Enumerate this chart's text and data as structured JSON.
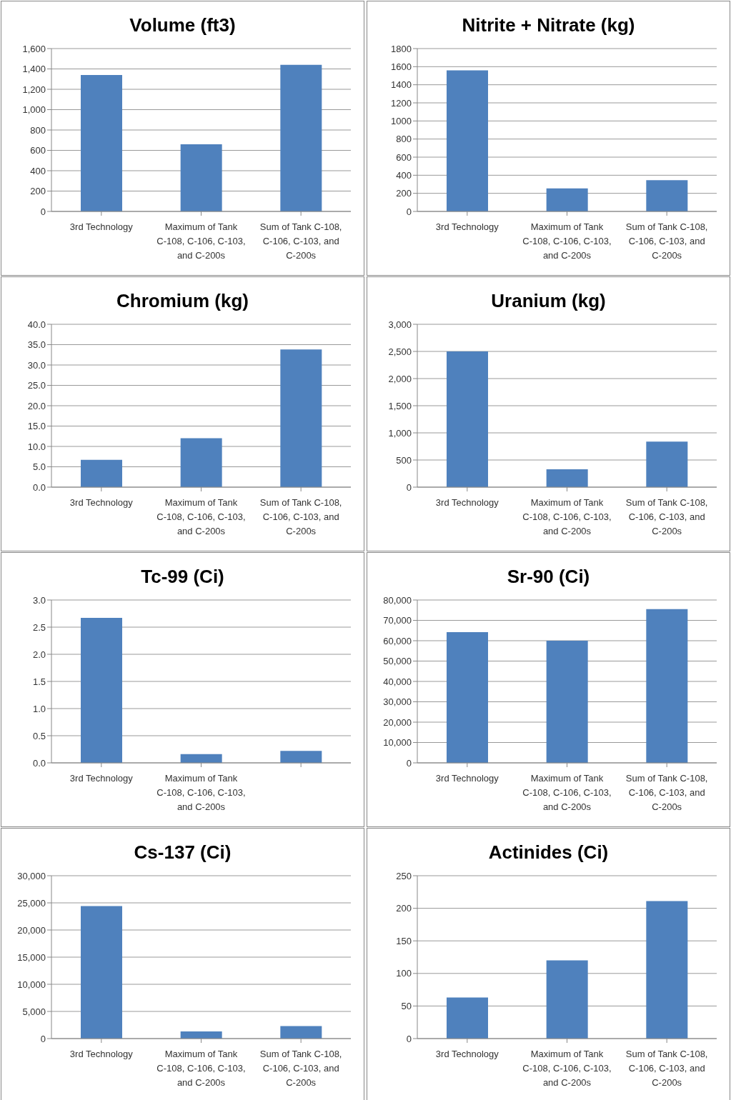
{
  "chart_data": [
    {
      "type": "bar",
      "title": "Volume (ft3)",
      "categories": [
        "3rd Technology",
        "Maximum of Tank C-108, C-106, C-103, and C-200s",
        "Sum of Tank C-108, C-106, C-103, and C-200s"
      ],
      "values": [
        1340,
        660,
        1440
      ],
      "color": "#4f81bd",
      "ylim": [
        0,
        1600
      ],
      "yticks": [
        0,
        200,
        400,
        600,
        800,
        {
          "value": 1000,
          "label": "1,000"
        },
        {
          "value": 1200,
          "label": "1,200"
        },
        {
          "value": 1400,
          "label": "1,400"
        },
        {
          "value": 1600,
          "label": "1,600"
        }
      ],
      "grid": "y"
    },
    {
      "type": "bar",
      "title": "Nitrite + Nitrate (kg)",
      "categories": [
        "3rd Technology",
        "Maximum of Tank C-108, C-106, C-103, and C-200s",
        "Sum of Tank C-108, C-106, C-103, and C-200s"
      ],
      "values": [
        1560,
        255,
        345
      ],
      "color": "#4f81bd",
      "ylim": [
        0,
        1800
      ],
      "yticks": [
        0,
        200,
        400,
        600,
        800,
        1000,
        1200,
        1400,
        1600,
        1800
      ],
      "grid": "y"
    },
    {
      "type": "bar",
      "title": "Chromium (kg)",
      "categories": [
        "3rd Technology",
        "Maximum of Tank C-108, C-106, C-103, and C-200s",
        "Sum of Tank C-108, C-106, C-103, and C-200s"
      ],
      "values": [
        6.7,
        12.0,
        33.8
      ],
      "color": "#4f81bd",
      "ylim": [
        0,
        40
      ],
      "yticks": [
        {
          "value": 0,
          "label": "0.0"
        },
        {
          "value": 5,
          "label": "5.0"
        },
        {
          "value": 10,
          "label": "10.0"
        },
        {
          "value": 15,
          "label": "15.0"
        },
        {
          "value": 20,
          "label": "20.0"
        },
        {
          "value": 25,
          "label": "25.0"
        },
        {
          "value": 30,
          "label": "30.0"
        },
        {
          "value": 35,
          "label": "35.0"
        },
        {
          "value": 40,
          "label": "40.0"
        }
      ],
      "grid": "y"
    },
    {
      "type": "bar",
      "title": "Uranium (kg)",
      "categories": [
        "3rd Technology",
        "Maximum of Tank C-108, C-106, C-103, and C-200s",
        "Sum of Tank C-108, C-106, C-103, and C-200s"
      ],
      "values": [
        2500,
        330,
        840
      ],
      "color": "#4f81bd",
      "ylim": [
        0,
        3000
      ],
      "yticks": [
        0,
        500,
        {
          "value": 1000,
          "label": "1,000"
        },
        {
          "value": 1500,
          "label": "1,500"
        },
        {
          "value": 2000,
          "label": "2,000"
        },
        {
          "value": 2500,
          "label": "2,500"
        },
        {
          "value": 3000,
          "label": "3,000"
        }
      ],
      "grid": "y"
    },
    {
      "type": "bar",
      "title": "Tc-99 (Ci)",
      "categories": [
        "3rd Technology",
        "Maximum of Tank C-108, C-106, C-103, and C-200s",
        null
      ],
      "values": [
        2.67,
        0.16,
        0.22
      ],
      "color": "#4f81bd",
      "ylim": [
        0,
        3
      ],
      "yticks": [
        {
          "value": 0,
          "label": "0.0"
        },
        0.5,
        {
          "value": 1,
          "label": "1.0"
        },
        1.5,
        {
          "value": 2,
          "label": "2.0"
        },
        2.5,
        {
          "value": 3,
          "label": "3.0"
        }
      ],
      "grid": "y"
    },
    {
      "type": "bar",
      "title": "Sr-90 (Ci)",
      "categories": [
        "3rd Technology",
        "Maximum of Tank C-108, C-106, C-103, and C-200s",
        "Sum of Tank C-108, C-106, C-103, and C-200s"
      ],
      "values": [
        64200,
        60000,
        75500
      ],
      "color": "#4f81bd",
      "ylim": [
        0,
        80000
      ],
      "yticks": [
        0,
        {
          "value": 10000,
          "label": "10,000"
        },
        {
          "value": 20000,
          "label": "20,000"
        },
        {
          "value": 30000,
          "label": "30,000"
        },
        {
          "value": 40000,
          "label": "40,000"
        },
        {
          "value": 50000,
          "label": "50,000"
        },
        {
          "value": 60000,
          "label": "60,000"
        },
        {
          "value": 70000,
          "label": "70,000"
        },
        {
          "value": 80000,
          "label": "80,000"
        }
      ],
      "grid": "y"
    },
    {
      "type": "bar",
      "title": "Cs-137 (Ci)",
      "categories": [
        "3rd Technology",
        "Maximum of Tank C-108, C-106, C-103, and C-200s",
        "Sum of Tank C-108, C-106, C-103, and C-200s"
      ],
      "values": [
        24400,
        1300,
        2300
      ],
      "color": "#4f81bd",
      "ylim": [
        0,
        30000
      ],
      "yticks": [
        0,
        {
          "value": 5000,
          "label": "5,000"
        },
        {
          "value": 10000,
          "label": "10,000"
        },
        {
          "value": 15000,
          "label": "15,000"
        },
        {
          "value": 20000,
          "label": "20,000"
        },
        {
          "value": 25000,
          "label": "25,000"
        },
        {
          "value": 30000,
          "label": "30,000"
        }
      ],
      "grid": "y"
    },
    {
      "type": "bar",
      "title": "Actinides (Ci)",
      "categories": [
        "3rd Technology",
        "Maximum of Tank C-108, C-106, C-103, and C-200s",
        "Sum of Tank C-108, C-106, C-103, and C-200s"
      ],
      "values": [
        63,
        120,
        211
      ],
      "color": "#4f81bd",
      "ylim": [
        0,
        250
      ],
      "yticks": [
        0,
        50,
        100,
        150,
        200,
        250
      ],
      "grid": "y"
    }
  ]
}
